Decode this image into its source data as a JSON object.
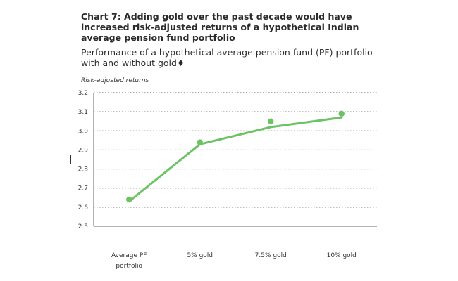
{
  "title": "Chart 7: Adding gold over the past decade would have increased risk-adjusted returns of a hypothetical Indian average pension fund portfolio",
  "subtitle": "Performance of a hypothetical average pension fund (PF) portfolio with and without gold♦",
  "chart_data": {
    "type": "line",
    "ylabel": "Risk-adjusted returns",
    "ylim": [
      2.5,
      3.2
    ],
    "yticks": [
      "3.2",
      "3.1",
      "3.0",
      "2.9",
      "2.8",
      "2.7",
      "2.6",
      "2.5"
    ],
    "categories": [
      [
        "Average PF",
        "portfolio"
      ],
      [
        "5% gold"
      ],
      [
        "7.5% gold"
      ],
      [
        "10% gold"
      ]
    ],
    "series": [
      {
        "values": [
          2.64,
          2.94,
          3.05,
          3.09
        ],
        "markers": true,
        "line": false
      },
      {
        "values": [
          2.63,
          2.93,
          3.02,
          3.07
        ],
        "markers": false,
        "line": true
      }
    ],
    "color": "#6cc363",
    "grid": true
  }
}
